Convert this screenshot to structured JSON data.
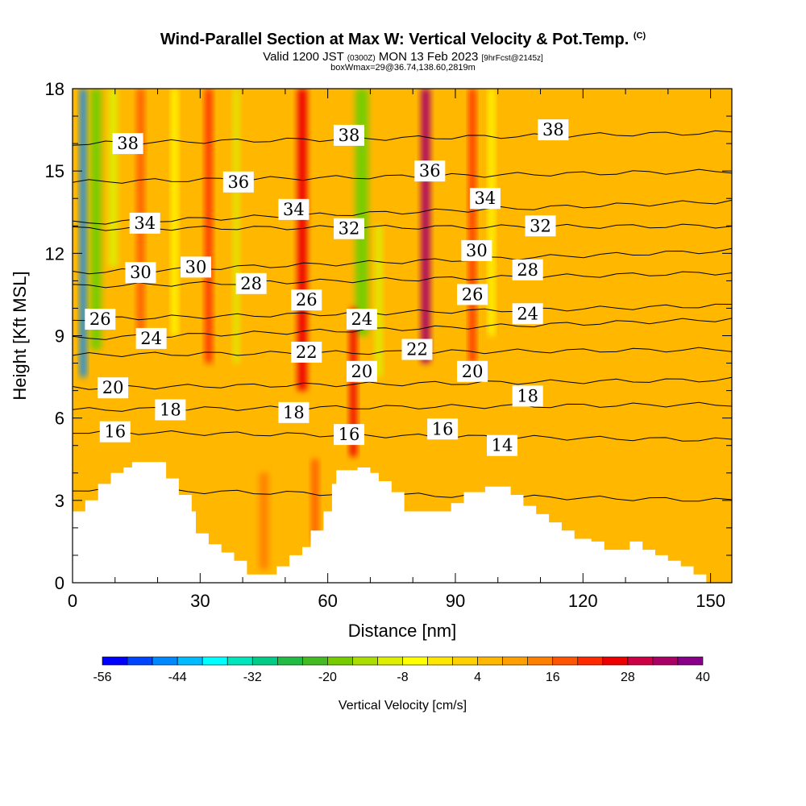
{
  "header": {
    "title": "Wind-Parallel Section at Max W: Vertical Velocity & Pot.Temp.",
    "copyright_mark": "(C)",
    "valid_prefix": "Valid 1200 JST",
    "valid_utc": "(0300Z)",
    "valid_date": "MON 13 Feb 2023",
    "forecast": "[9hrFcst@2145z]",
    "box_info": "boxWmax=29@36.74,138.60,2819m"
  },
  "colors": {
    "ramp": [
      "#0000ff",
      "#0044ff",
      "#0088ff",
      "#00bbff",
      "#00ffff",
      "#00e5bb",
      "#00cc88",
      "#22bb44",
      "#44bb22",
      "#77cc00",
      "#aadd00",
      "#ddee00",
      "#ffff00",
      "#ffe600",
      "#ffd000",
      "#ffb700",
      "#ff9f00",
      "#ff7f00",
      "#ff5500",
      "#ff2a00",
      "#ee0000",
      "#cc0044",
      "#aa0066",
      "#880088",
      "#550099"
    ],
    "terrain": "#ffffff"
  },
  "chart_data": {
    "type": "heatmap",
    "xlabel": "Distance [nm]",
    "ylabel": "Height [Kft MSL]",
    "xlim": [
      0,
      155
    ],
    "ylim": [
      0,
      18
    ],
    "x_ticks": [
      0,
      30,
      60,
      90,
      120,
      150
    ],
    "y_ticks": [
      0,
      3,
      6,
      9,
      12,
      15,
      18
    ],
    "colorbar": {
      "title": "Vertical Velocity [cm/s]",
      "min": -56,
      "max": 40,
      "step": 4,
      "tick_labels": [
        -56,
        -44,
        -32,
        -20,
        -8,
        4,
        16,
        28,
        40
      ]
    },
    "terrain_profile": [
      [
        0,
        2.6
      ],
      [
        3,
        2.6
      ],
      [
        3,
        3.0
      ],
      [
        6,
        3.0
      ],
      [
        6,
        3.6
      ],
      [
        9,
        3.6
      ],
      [
        9,
        4.0
      ],
      [
        12,
        4.0
      ],
      [
        12,
        4.2
      ],
      [
        14,
        4.2
      ],
      [
        14,
        4.4
      ],
      [
        22,
        4.4
      ],
      [
        22,
        3.8
      ],
      [
        25,
        3.8
      ],
      [
        25,
        3.2
      ],
      [
        28,
        3.2
      ],
      [
        28,
        2.6
      ],
      [
        29,
        2.6
      ],
      [
        29,
        1.8
      ],
      [
        32,
        1.8
      ],
      [
        32,
        1.4
      ],
      [
        35,
        1.4
      ],
      [
        35,
        1.1
      ],
      [
        38,
        1.1
      ],
      [
        38,
        0.8
      ],
      [
        41,
        0.8
      ],
      [
        41,
        0.3
      ],
      [
        48,
        0.3
      ],
      [
        48,
        0.6
      ],
      [
        51,
        0.6
      ],
      [
        51,
        1.0
      ],
      [
        54,
        1.0
      ],
      [
        54,
        1.3
      ],
      [
        56,
        1.3
      ],
      [
        56,
        1.9
      ],
      [
        59,
        1.9
      ],
      [
        59,
        2.6
      ],
      [
        61,
        2.6
      ],
      [
        61,
        3.6
      ],
      [
        62,
        3.6
      ],
      [
        62,
        4.1
      ],
      [
        67,
        4.1
      ],
      [
        67,
        4.2
      ],
      [
        70,
        4.2
      ],
      [
        70,
        4.0
      ],
      [
        72,
        4.0
      ],
      [
        72,
        3.7
      ],
      [
        75,
        3.7
      ],
      [
        75,
        3.3
      ],
      [
        78,
        3.3
      ],
      [
        78,
        2.6
      ],
      [
        84,
        2.6
      ],
      [
        84,
        2.6
      ],
      [
        89,
        2.6
      ],
      [
        89,
        2.9
      ],
      [
        92,
        2.9
      ],
      [
        92,
        3.3
      ],
      [
        97,
        3.3
      ],
      [
        97,
        3.5
      ],
      [
        103,
        3.5
      ],
      [
        103,
        3.2
      ],
      [
        106,
        3.2
      ],
      [
        106,
        2.8
      ],
      [
        109,
        2.8
      ],
      [
        109,
        2.5
      ],
      [
        112,
        2.5
      ],
      [
        112,
        2.2
      ],
      [
        115,
        2.2
      ],
      [
        115,
        1.9
      ],
      [
        118,
        1.9
      ],
      [
        118,
        1.6
      ],
      [
        122,
        1.6
      ],
      [
        122,
        1.5
      ],
      [
        125,
        1.5
      ],
      [
        125,
        1.2
      ],
      [
        131,
        1.2
      ],
      [
        131,
        1.5
      ],
      [
        134,
        1.5
      ],
      [
        134,
        1.2
      ],
      [
        137,
        1.2
      ],
      [
        137,
        1.0
      ],
      [
        140,
        1.0
      ],
      [
        140,
        0.8
      ],
      [
        143,
        0.8
      ],
      [
        143,
        0.6
      ],
      [
        146,
        0.6
      ],
      [
        146,
        0.3
      ],
      [
        149,
        0.3
      ],
      [
        149,
        0.0
      ]
    ],
    "velocity_features": [
      {
        "x": 2.5,
        "y0": 7.5,
        "y1": 18,
        "width": 1.4,
        "w": -48
      },
      {
        "x": 5.5,
        "y0": 8.5,
        "y1": 18,
        "width": 2.5,
        "w": -20
      },
      {
        "x": 9.5,
        "y0": 11.5,
        "y1": 18,
        "width": 2.0,
        "w": -10
      },
      {
        "x": 16,
        "y0": 9,
        "y1": 18,
        "width": 1.6,
        "w": 18
      },
      {
        "x": 24,
        "y0": 9,
        "y1": 18,
        "width": 1.4,
        "w": -6
      },
      {
        "x": 32,
        "y0": 8,
        "y1": 18,
        "width": 1.6,
        "w": 22
      },
      {
        "x": 38.5,
        "y0": 8,
        "y1": 18,
        "width": 1.3,
        "w": -10
      },
      {
        "x": 54,
        "y0": 7,
        "y1": 18,
        "width": 2.2,
        "w": 26
      },
      {
        "x": 68,
        "y0": 9,
        "y1": 18,
        "width": 3.0,
        "w": -20
      },
      {
        "x": 72,
        "y0": 7.5,
        "y1": 13,
        "width": 1.6,
        "w": -10
      },
      {
        "x": 66,
        "y0": 4.6,
        "y1": 10,
        "width": 1.6,
        "w": 26
      },
      {
        "x": 83,
        "y0": 8,
        "y1": 18,
        "width": 2.0,
        "w": 32
      },
      {
        "x": 94,
        "y0": 8,
        "y1": 18,
        "width": 1.5,
        "w": 20
      },
      {
        "x": 98.5,
        "y0": 9,
        "y1": 18,
        "width": 1.3,
        "w": -6
      },
      {
        "x": 45,
        "y0": 0.5,
        "y1": 4,
        "width": 2.0,
        "w": 14
      },
      {
        "x": 57,
        "y0": 1.5,
        "y1": 4.5,
        "width": 1.5,
        "w": 18
      }
    ],
    "isentropes": [
      {
        "label": "14",
        "y_left": 3.4,
        "y_right": 3.0,
        "label_x": 101,
        "label_y": 5.0
      },
      {
        "label": "16",
        "y_left": 5.5,
        "y_right": 5.2,
        "label_x": 10,
        "label_y": 5.5
      },
      {
        "label": "16",
        "y_left": 5.5,
        "y_right": 5.2,
        "label_x": 65,
        "label_y": 5.4
      },
      {
        "label": "16",
        "y_left": 5.5,
        "y_right": 5.2,
        "label_x": 87,
        "label_y": 5.6
      },
      {
        "label": "18",
        "y_left": 6.3,
        "y_right": 6.5,
        "label_x": 23,
        "label_y": 6.3
      },
      {
        "label": "18",
        "y_left": 6.3,
        "y_right": 6.5,
        "label_x": 52,
        "label_y": 6.2
      },
      {
        "label": "18",
        "y_left": 6.3,
        "y_right": 6.5,
        "label_x": 107,
        "label_y": 6.8
      },
      {
        "label": "20",
        "y_left": 7.1,
        "y_right": 7.4,
        "label_x": 9.5,
        "label_y": 7.1
      },
      {
        "label": "20",
        "y_left": 7.1,
        "y_right": 7.4,
        "label_x": 68,
        "label_y": 7.7
      },
      {
        "label": "20",
        "y_left": 7.1,
        "y_right": 7.4,
        "label_x": 94,
        "label_y": 7.7
      },
      {
        "label": "22",
        "y_left": 8.3,
        "y_right": 8.5,
        "label_x": 55,
        "label_y": 8.4
      },
      {
        "label": "22",
        "y_left": 8.3,
        "y_right": 8.5,
        "label_x": 81,
        "label_y": 8.5
      },
      {
        "label": "24",
        "y_left": 8.9,
        "y_right": 9.6,
        "label_x": 18.5,
        "label_y": 8.9
      },
      {
        "label": "24",
        "y_left": 8.9,
        "y_right": 9.6,
        "label_x": 68,
        "label_y": 9.6
      },
      {
        "label": "24",
        "y_left": 8.9,
        "y_right": 9.6,
        "label_x": 107,
        "label_y": 9.8
      },
      {
        "label": "26",
        "y_left": 9.6,
        "y_right": 10.1,
        "label_x": 6.5,
        "label_y": 9.6
      },
      {
        "label": "26",
        "y_left": 9.6,
        "y_right": 10.1,
        "label_x": 55,
        "label_y": 10.3
      },
      {
        "label": "26",
        "y_left": 9.6,
        "y_right": 10.1,
        "label_x": 94,
        "label_y": 10.5
      },
      {
        "label": "28",
        "y_left": 10.8,
        "y_right": 11.3,
        "label_x": 42,
        "label_y": 10.9
      },
      {
        "label": "28",
        "y_left": 10.8,
        "y_right": 11.3,
        "label_x": 107,
        "label_y": 11.4
      },
      {
        "label": "30",
        "y_left": 11.3,
        "y_right": 12.1,
        "label_x": 16,
        "label_y": 11.3
      },
      {
        "label": "30",
        "y_left": 11.3,
        "y_right": 12.1,
        "label_x": 29,
        "label_y": 11.5
      },
      {
        "label": "30",
        "y_left": 11.3,
        "y_right": 12.1,
        "label_x": 95,
        "label_y": 12.1
      },
      {
        "label": "32",
        "y_left": 12.9,
        "y_right": 13.0,
        "label_x": 65,
        "label_y": 12.9
      },
      {
        "label": "32",
        "y_left": 12.9,
        "y_right": 13.0,
        "label_x": 110,
        "label_y": 13.0
      },
      {
        "label": "34",
        "y_left": 13.1,
        "y_right": 13.9,
        "label_x": 17,
        "label_y": 13.1
      },
      {
        "label": "34",
        "y_left": 13.1,
        "y_right": 13.9,
        "label_x": 52,
        "label_y": 13.6
      },
      {
        "label": "34",
        "y_left": 13.1,
        "y_right": 13.9,
        "label_x": 97,
        "label_y": 14.0
      },
      {
        "label": "36",
        "y_left": 14.6,
        "y_right": 15.0,
        "label_x": 39,
        "label_y": 14.6
      },
      {
        "label": "36",
        "y_left": 14.6,
        "y_right": 15.0,
        "label_x": 84,
        "label_y": 15.0
      },
      {
        "label": "38",
        "y_left": 16.0,
        "y_right": 16.4,
        "label_x": 13,
        "label_y": 16.0
      },
      {
        "label": "38",
        "y_left": 16.0,
        "y_right": 16.4,
        "label_x": 65,
        "label_y": 16.3
      },
      {
        "label": "38",
        "y_left": 16.0,
        "y_right": 16.4,
        "label_x": 113,
        "label_y": 16.5
      }
    ]
  }
}
